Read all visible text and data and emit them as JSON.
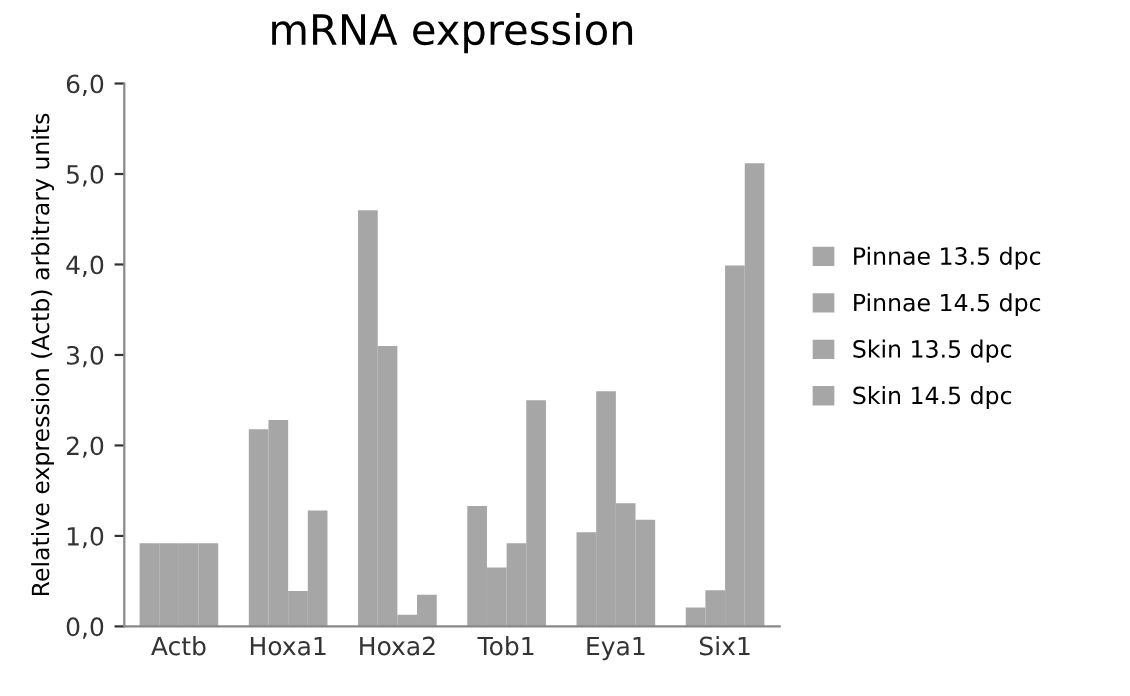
{
  "chart_data": {
    "type": "bar",
    "title": "mRNA expression",
    "ylabel": "Relative expression (Actb) arbitrary units",
    "categories": [
      "Actb",
      "Hoxa1",
      "Hoxa2",
      "Tob1",
      "Eya1",
      "Six1"
    ],
    "series": [
      {
        "name": "Pinnae 13.5 dpc",
        "color": "#a6a6a6",
        "values": [
          0.92,
          2.18,
          4.6,
          1.33,
          1.04,
          0.21
        ]
      },
      {
        "name": "Pinnae 14.5 dpc",
        "color": "#a6a6a6",
        "values": [
          0.92,
          2.28,
          3.1,
          0.65,
          2.6,
          0.4
        ]
      },
      {
        "name": "Skin 13.5 dpc",
        "color": "#a6a6a6",
        "values": [
          0.92,
          0.39,
          0.13,
          0.92,
          1.36,
          3.99
        ]
      },
      {
        "name": "Skin 14.5 dpc",
        "color": "#a6a6a6",
        "values": [
          0.92,
          1.28,
          0.35,
          2.5,
          1.18,
          5.12
        ]
      }
    ],
    "ylim": [
      0,
      6
    ],
    "yticks": [
      {
        "value": 0,
        "label": "0,0"
      },
      {
        "value": 1,
        "label": "1,0"
      },
      {
        "value": 2,
        "label": "2,0"
      },
      {
        "value": 3,
        "label": "3,0"
      },
      {
        "value": 4,
        "label": "4,0"
      },
      {
        "value": 5,
        "label": "5,0"
      },
      {
        "value": 6,
        "label": "6,0"
      }
    ],
    "grid": false,
    "legend": "right"
  }
}
